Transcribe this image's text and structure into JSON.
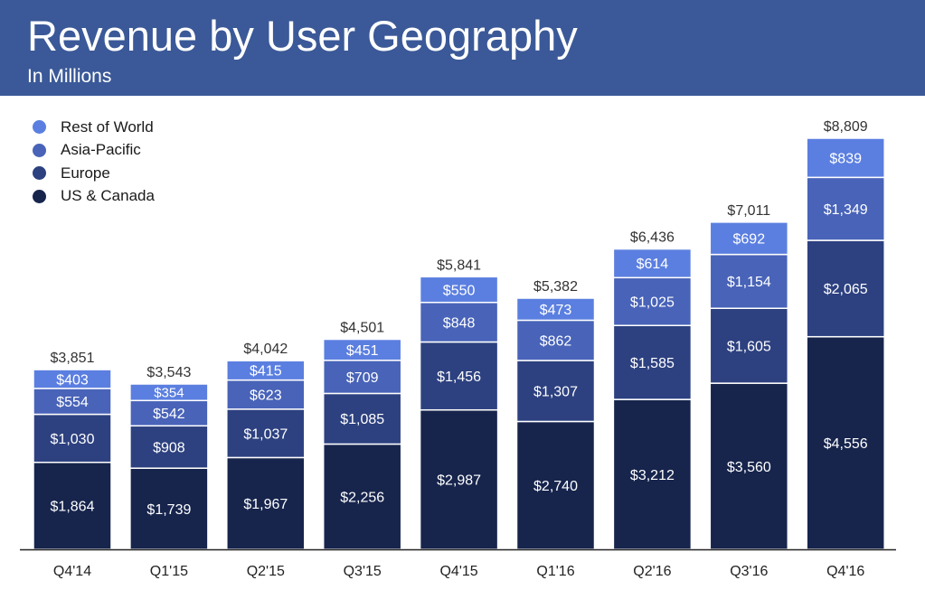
{
  "header": {
    "title": "Revenue by User Geography",
    "subtitle": "In Millions"
  },
  "legend": {
    "items": [
      {
        "label": "Rest of World",
        "color": "#5b7fe0"
      },
      {
        "label": "Asia-Pacific",
        "color": "#4863b8"
      },
      {
        "label": "Europe",
        "color": "#2d4180"
      },
      {
        "label": "US & Canada",
        "color": "#17254d"
      }
    ]
  },
  "chart_data": {
    "type": "bar",
    "stacked": true,
    "title": "Revenue by User Geography",
    "subtitle": "In Millions",
    "categories": [
      "Q4'14",
      "Q1'15",
      "Q2'15",
      "Q3'15",
      "Q4'15",
      "Q1'16",
      "Q2'16",
      "Q3'16",
      "Q4'16"
    ],
    "series": [
      {
        "name": "US & Canada",
        "color": "#17254d",
        "values": [
          1864,
          1739,
          1967,
          2256,
          2987,
          2740,
          3212,
          3560,
          4556
        ]
      },
      {
        "name": "Europe",
        "color": "#2d4180",
        "values": [
          1030,
          908,
          1037,
          1085,
          1456,
          1307,
          1585,
          1605,
          2065
        ]
      },
      {
        "name": "Asia-Pacific",
        "color": "#4863b8",
        "values": [
          554,
          542,
          623,
          709,
          848,
          862,
          1025,
          1154,
          1349
        ]
      },
      {
        "name": "Rest of World",
        "color": "#5b7fe0",
        "values": [
          403,
          354,
          415,
          451,
          550,
          473,
          614,
          692,
          839
        ]
      }
    ],
    "totals": [
      3851,
      3543,
      4042,
      4501,
      5841,
      5382,
      6436,
      7011,
      8809
    ],
    "value_prefix": "$",
    "ylim": [
      0,
      8809
    ],
    "legend_position": "top-left",
    "grid": false
  }
}
